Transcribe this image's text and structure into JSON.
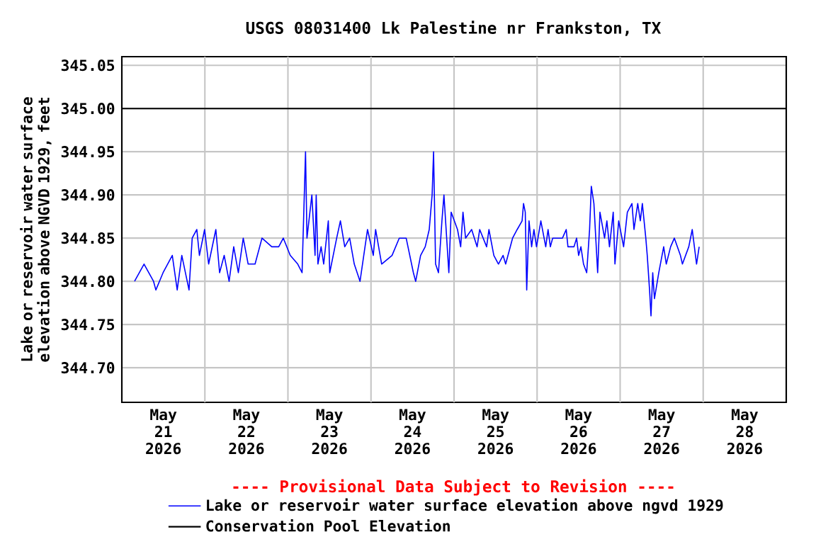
{
  "chart_data": {
    "type": "line",
    "title": "USGS 08031400 Lk Palestine nr Frankston, TX",
    "ylabel": "Lake or reservoir water surface elevation above NGVD 1929, feet",
    "annotations": [
      "---- Provisional Data Subject to Revision ----"
    ],
    "xlim": [
      "2026-05-21T00:00",
      "2026-05-29T00:00"
    ],
    "xticks": [
      {
        "value": "2026-05-21T12:00",
        "label": "May 21 2026"
      },
      {
        "value": "2026-05-22T12:00",
        "label": "May 22 2026"
      },
      {
        "value": "2026-05-23T12:00",
        "label": "May 23 2026"
      },
      {
        "value": "2026-05-24T12:00",
        "label": "May 24 2026"
      },
      {
        "value": "2026-05-25T12:00",
        "label": "May 25 2026"
      },
      {
        "value": "2026-05-26T12:00",
        "label": "May 26 2026"
      },
      {
        "value": "2026-05-27T12:00",
        "label": "May 27 2026"
      },
      {
        "value": "2026-05-28T12:00",
        "label": "May 28 2026"
      },
      {
        "value": "2026-05-22T00:00",
        "label": null
      },
      {
        "value": "2026-05-23T00:00",
        "label": null
      },
      {
        "value": "2026-05-24T00:00",
        "label": null
      },
      {
        "value": "2026-05-25T00:00",
        "label": null
      },
      {
        "value": "2026-05-26T00:00",
        "label": null
      },
      {
        "value": "2026-05-27T00:00",
        "label": null
      },
      {
        "value": "2026-05-28T00:00",
        "label": null
      }
    ],
    "ylim": [
      344.66,
      345.06
    ],
    "yticks": [
      {
        "value": 344.7,
        "label": "344.70"
      },
      {
        "value": 344.75,
        "label": "344.75"
      },
      {
        "value": 344.8,
        "label": "344.80"
      },
      {
        "value": 344.85,
        "label": "344.85"
      },
      {
        "value": 344.9,
        "label": "344.90"
      },
      {
        "value": 344.95,
        "label": "344.95"
      },
      {
        "value": 345.0,
        "label": "345.00"
      },
      {
        "value": 345.05,
        "label": "345.05"
      }
    ],
    "grid": true,
    "legend": "bottom",
    "marker": "none",
    "line_style": "solid",
    "ref_lines": [
      {
        "axis": "y",
        "value": 345.0,
        "label": "Conservation Pool Elevation",
        "color": "#000000"
      }
    ],
    "series": [
      {
        "name": "Lake or reservoir water surface elevation above ngvd 1929",
        "color": "#0000ff",
        "x": [
          "2026-05-21T03:40",
          "2026-05-21T06:25",
          "2026-05-21T09:10",
          "2026-05-21T09:50",
          "2026-05-21T11:55",
          "2026-05-21T14:35",
          "2026-05-21T16:00",
          "2026-05-21T17:20",
          "2026-05-21T19:25",
          "2026-05-21T20:20",
          "2026-05-21T21:40",
          "2026-05-21T22:25",
          "2026-05-21T23:55",
          "2026-05-22T01:05",
          "2026-05-22T03:10",
          "2026-05-22T04:15",
          "2026-05-22T05:35",
          "2026-05-22T07:00",
          "2026-05-22T08:20",
          "2026-05-22T09:40",
          "2026-05-22T11:05",
          "2026-05-22T12:30",
          "2026-05-22T14:30",
          "2026-05-22T16:30",
          "2026-05-22T19:20",
          "2026-05-22T21:20",
          "2026-05-22T22:40",
          "2026-05-23T00:40",
          "2026-05-23T02:50",
          "2026-05-23T04:05",
          "2026-05-23T05:05",
          "2026-05-23T05:30",
          "2026-05-23T06:55",
          "2026-05-23T07:50",
          "2026-05-23T08:10",
          "2026-05-23T08:40",
          "2026-05-23T09:35",
          "2026-05-23T10:20",
          "2026-05-23T11:40",
          "2026-05-23T12:05",
          "2026-05-23T14:05",
          "2026-05-23T15:10",
          "2026-05-23T16:25",
          "2026-05-23T17:50",
          "2026-05-23T19:10",
          "2026-05-23T20:50",
          "2026-05-23T23:00",
          "2026-05-24T00:40",
          "2026-05-24T01:20",
          "2026-05-24T03:05",
          "2026-05-24T06:05",
          "2026-05-24T08:10",
          "2026-05-24T10:10",
          "2026-05-24T12:15",
          "2026-05-24T12:55",
          "2026-05-24T14:20",
          "2026-05-24T15:40",
          "2026-05-24T16:50",
          "2026-05-24T17:40",
          "2026-05-24T18:05",
          "2026-05-24T18:40",
          "2026-05-24T19:30",
          "2026-05-24T20:30",
          "2026-05-24T21:05",
          "2026-05-24T22:30",
          "2026-05-24T23:10",
          "2026-05-25T01:00",
          "2026-05-25T01:55",
          "2026-05-25T02:35",
          "2026-05-25T03:20",
          "2026-05-25T05:05",
          "2026-05-25T06:40",
          "2026-05-25T07:25",
          "2026-05-25T09:25",
          "2026-05-25T10:05",
          "2026-05-25T11:30",
          "2026-05-25T12:50",
          "2026-05-25T14:10",
          "2026-05-25T14:55",
          "2026-05-25T16:55",
          "2026-05-25T18:15",
          "2026-05-25T19:40",
          "2026-05-25T20:05",
          "2026-05-25T20:35",
          "2026-05-25T21:00",
          "2026-05-25T21:40",
          "2026-05-25T22:25",
          "2026-05-25T23:05",
          "2026-05-25T23:50",
          "2026-05-26T01:05",
          "2026-05-26T02:30",
          "2026-05-26T03:10",
          "2026-05-26T03:50",
          "2026-05-26T04:30",
          "2026-05-26T07:20",
          "2026-05-26T08:25",
          "2026-05-26T08:55",
          "2026-05-26T10:40",
          "2026-05-26T11:25",
          "2026-05-26T12:00",
          "2026-05-26T12:40",
          "2026-05-26T13:25",
          "2026-05-26T14:20",
          "2026-05-26T15:10",
          "2026-05-26T15:40",
          "2026-05-26T16:25",
          "2026-05-26T17:30",
          "2026-05-26T18:10",
          "2026-05-26T19:30",
          "2026-05-26T20:10",
          "2026-05-26T20:55",
          "2026-05-26T22:00",
          "2026-05-26T22:30",
          "2026-05-26T23:35",
          "2026-05-27T01:00",
          "2026-05-27T02:05",
          "2026-05-27T03:25",
          "2026-05-27T04:00",
          "2026-05-27T05:05",
          "2026-05-27T05:50",
          "2026-05-27T06:25",
          "2026-05-27T07:25",
          "2026-05-27T07:50",
          "2026-05-27T08:30",
          "2026-05-27T08:55",
          "2026-05-27T09:25",
          "2026-05-27T09:55",
          "2026-05-27T11:10",
          "2026-05-27T12:35",
          "2026-05-27T13:20",
          "2026-05-27T14:35",
          "2026-05-27T15:40",
          "2026-05-27T17:25",
          "2026-05-27T18:00",
          "2026-05-27T19:50",
          "2026-05-27T20:50",
          "2026-05-27T22:05",
          "2026-05-27T22:50"
        ],
        "values": [
          344.8,
          344.82,
          344.8,
          344.79,
          344.81,
          344.83,
          344.79,
          344.83,
          344.79,
          344.85,
          344.86,
          344.83,
          344.86,
          344.82,
          344.86,
          344.81,
          344.83,
          344.8,
          344.84,
          344.81,
          344.85,
          344.82,
          344.82,
          344.85,
          344.84,
          344.84,
          344.85,
          344.83,
          344.82,
          344.81,
          344.95,
          344.85,
          344.9,
          344.83,
          344.9,
          344.82,
          344.84,
          344.82,
          344.87,
          344.81,
          344.85,
          344.87,
          344.84,
          344.85,
          344.82,
          344.8,
          344.86,
          344.83,
          344.86,
          344.82,
          344.83,
          344.85,
          344.85,
          344.81,
          344.8,
          344.83,
          344.84,
          344.86,
          344.9,
          344.95,
          344.82,
          344.81,
          344.87,
          344.9,
          344.81,
          344.88,
          344.86,
          344.84,
          344.88,
          344.85,
          344.86,
          344.84,
          344.86,
          344.84,
          344.86,
          344.83,
          344.82,
          344.83,
          344.82,
          344.85,
          344.86,
          344.87,
          344.89,
          344.88,
          344.79,
          344.87,
          344.84,
          344.86,
          344.84,
          344.87,
          344.84,
          344.86,
          344.84,
          344.85,
          344.85,
          344.86,
          344.84,
          344.84,
          344.85,
          344.83,
          344.84,
          344.82,
          344.81,
          344.86,
          344.91,
          344.89,
          344.81,
          344.88,
          344.85,
          344.87,
          344.84,
          344.88,
          344.82,
          344.87,
          344.84,
          344.88,
          344.89,
          344.86,
          344.89,
          344.87,
          344.89,
          344.85,
          344.83,
          344.79,
          344.76,
          344.81,
          344.78,
          344.81,
          344.84,
          344.82,
          344.84,
          344.85,
          344.83,
          344.82,
          344.84,
          344.86,
          344.82,
          344.84
        ]
      }
    ]
  }
}
